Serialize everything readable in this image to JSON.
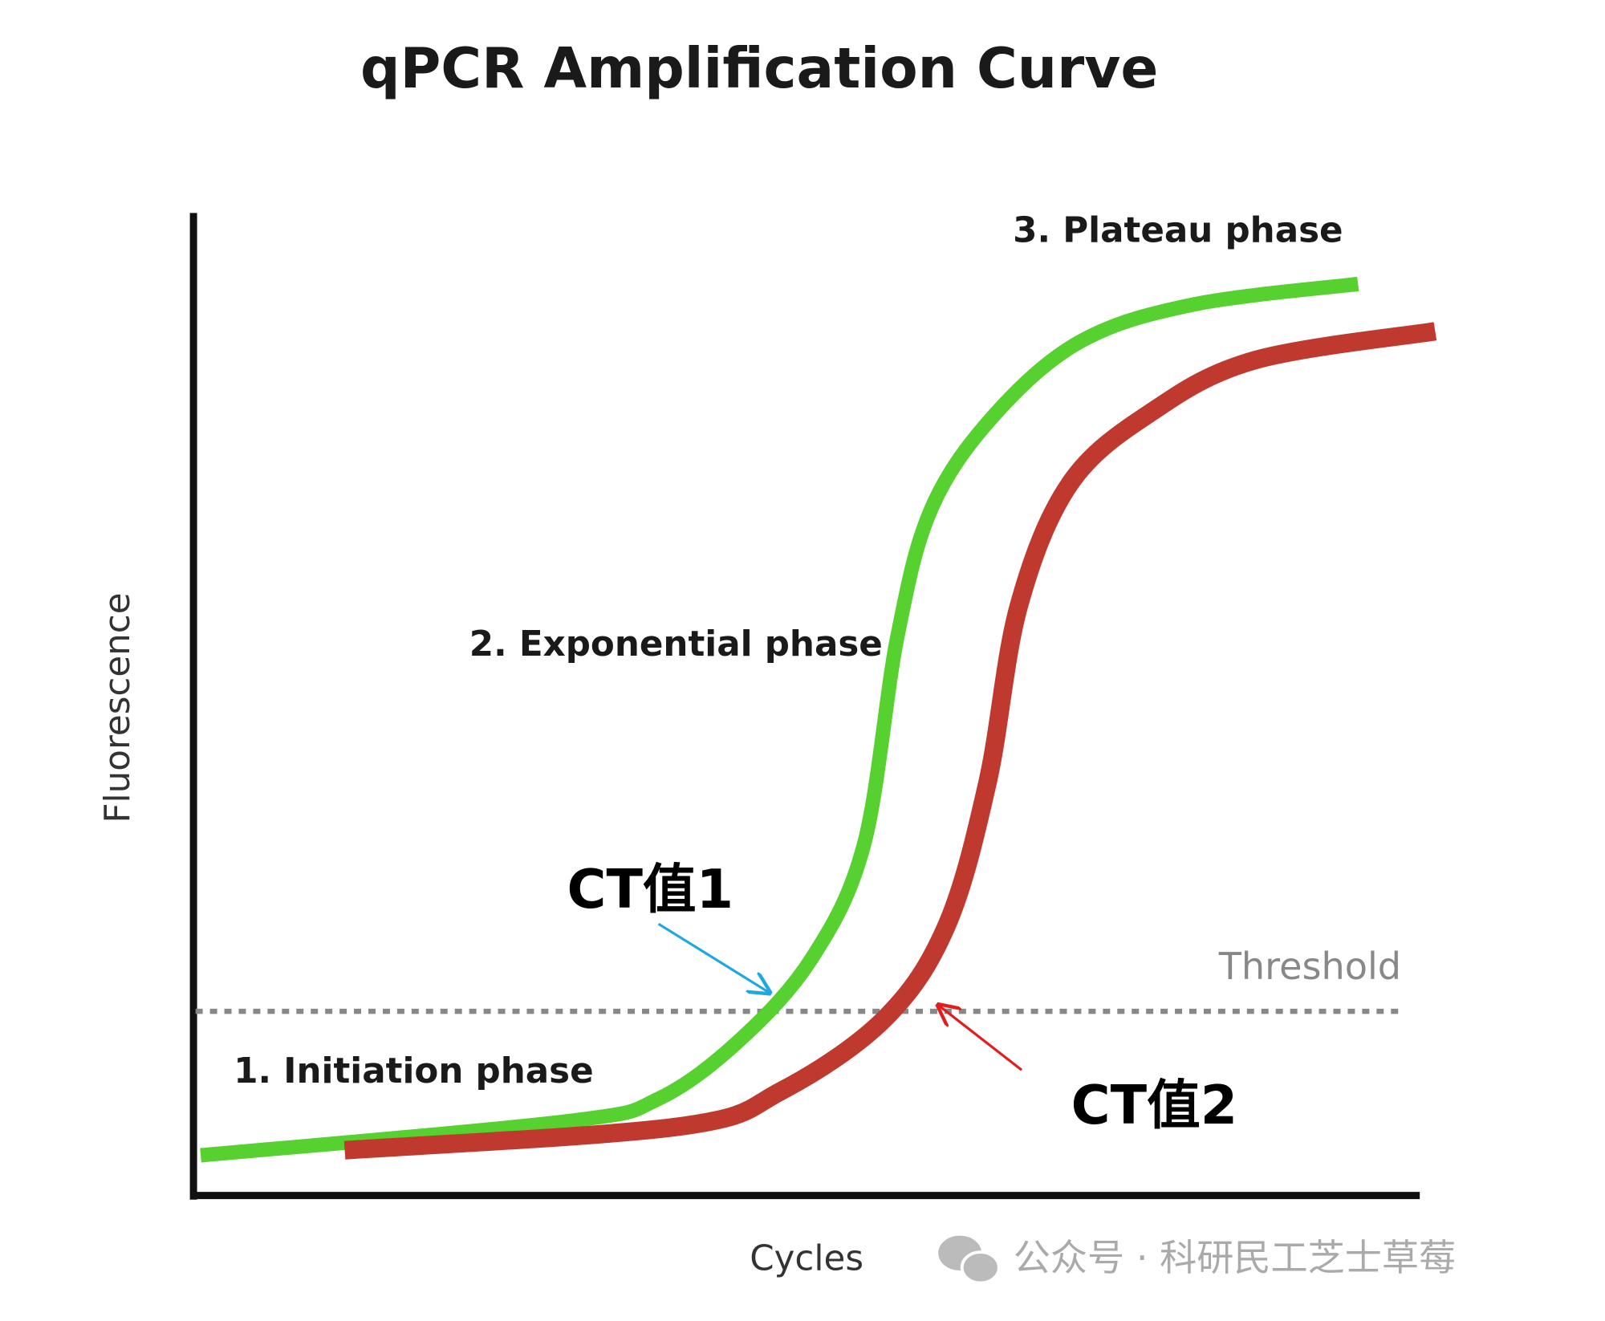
{
  "title": "qPCR Amplification Curve",
  "axes": {
    "y_label": "Fluorescence",
    "x_label": "Cycles"
  },
  "phases": [
    "1. Initiation phase",
    "2. Exponential phase",
    "3. Plateau phase"
  ],
  "threshold": "Threshold",
  "ct_labels": [
    "CT值1",
    "CT值2"
  ],
  "watermark": "公众号 · 科研民工芝士草莓"
}
